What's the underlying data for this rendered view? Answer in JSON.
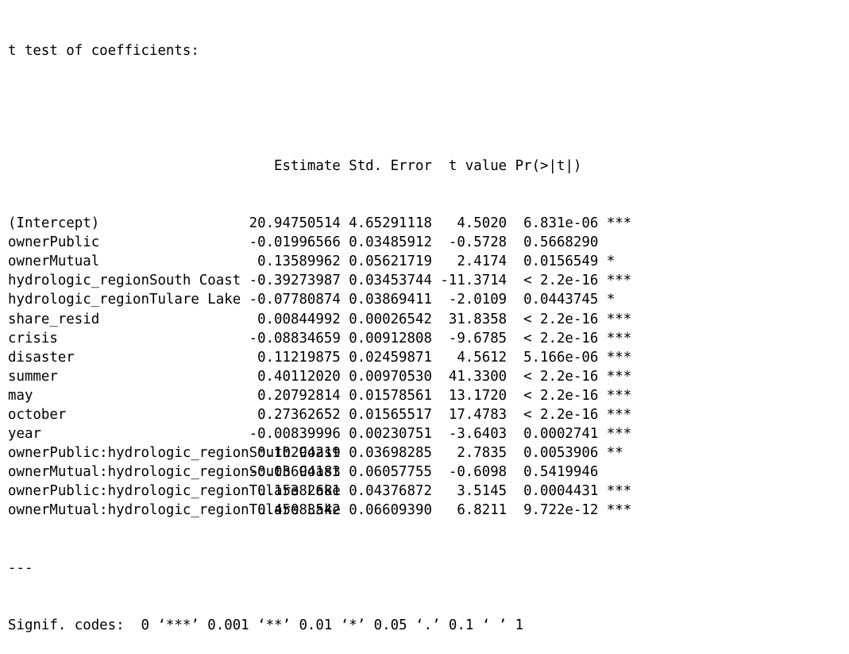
{
  "title": "t test of coefficients:",
  "headers": {
    "estimate": "Estimate",
    "std_error": "Std. Error",
    "t_value": "t value",
    "p_value": "Pr(>|t|)"
  },
  "rows": [
    {
      "name": "(Intercept)",
      "estimate": "20.94750514",
      "std_error": "4.65291118",
      "t_value": "4.5020",
      "p_value": "6.831e-06",
      "signif": "***"
    },
    {
      "name": "ownerPublic",
      "estimate": "-0.01996566",
      "std_error": "0.03485912",
      "t_value": "-0.5728",
      "p_value": "0.5668290",
      "signif": ""
    },
    {
      "name": "ownerMutual",
      "estimate": "0.13589962",
      "std_error": "0.05621719",
      "t_value": "2.4174",
      "p_value": "0.0156549",
      "signif": "*"
    },
    {
      "name": "hydrologic_regionSouth Coast",
      "estimate": "-0.39273987",
      "std_error": "0.03453744",
      "t_value": "-11.3714",
      "p_value": "< 2.2e-16",
      "signif": "***"
    },
    {
      "name": "hydrologic_regionTulare Lake",
      "estimate": "-0.07780874",
      "std_error": "0.03869411",
      "t_value": "-2.0109",
      "p_value": "0.0443745",
      "signif": "*"
    },
    {
      "name": "share_resid",
      "estimate": "0.00844992",
      "std_error": "0.00026542",
      "t_value": "31.8358",
      "p_value": "< 2.2e-16",
      "signif": "***"
    },
    {
      "name": "crisis",
      "estimate": "-0.08834659",
      "std_error": "0.00912808",
      "t_value": "-9.6785",
      "p_value": "< 2.2e-16",
      "signif": "***"
    },
    {
      "name": "disaster",
      "estimate": "0.11219875",
      "std_error": "0.02459871",
      "t_value": "4.5612",
      "p_value": "5.166e-06",
      "signif": "***"
    },
    {
      "name": "summer",
      "estimate": "0.40112020",
      "std_error": "0.00970530",
      "t_value": "41.3300",
      "p_value": "< 2.2e-16",
      "signif": "***"
    },
    {
      "name": "may",
      "estimate": "0.20792814",
      "std_error": "0.01578561",
      "t_value": "13.1720",
      "p_value": "< 2.2e-16",
      "signif": "***"
    },
    {
      "name": "october",
      "estimate": "0.27362652",
      "std_error": "0.01565517",
      "t_value": "17.4783",
      "p_value": "< 2.2e-16",
      "signif": "***"
    },
    {
      "name": "year",
      "estimate": "-0.00839996",
      "std_error": "0.00230751",
      "t_value": "-3.6403",
      "p_value": "0.0002741",
      "signif": "***"
    },
    {
      "name": "ownerPublic:hydrologic_regionSouth Coast",
      "estimate": "0.10294219",
      "std_error": "0.03698285",
      "t_value": "2.7835",
      "p_value": "0.0053906",
      "signif": "**"
    },
    {
      "name": "ownerMutual:hydrologic_regionSouth Coast",
      "estimate": "-0.03694183",
      "std_error": "0.06057755",
      "t_value": "-0.6098",
      "p_value": "0.5419946",
      "signif": ""
    },
    {
      "name": "ownerPublic:hydrologic_regionTulare Lake",
      "estimate": "0.15382681",
      "std_error": "0.04376872",
      "t_value": "3.5145",
      "p_value": "0.0004431",
      "signif": "***"
    },
    {
      "name": "ownerMutual:hydrologic_regionTulare Lake",
      "estimate": "0.45083542",
      "std_error": "0.06609390",
      "t_value": "6.8211",
      "p_value": "9.722e-12",
      "signif": "***"
    }
  ],
  "separator": "---",
  "signif_codes": "Signif. codes:  0 ‘***’ 0.001 ‘**’ 0.01 ‘*’ 0.05 ‘.’ 0.1 ‘ ’ 1"
}
